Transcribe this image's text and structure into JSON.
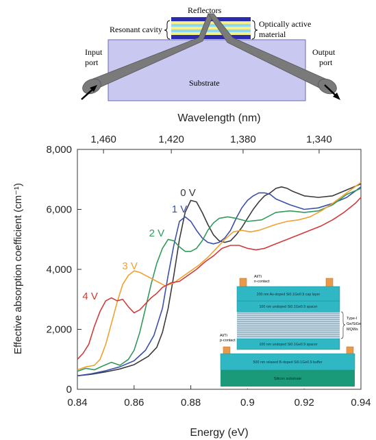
{
  "schematic": {
    "labels": {
      "reflectors": "Reflectors",
      "resonant_cavity": "Resonant cavity",
      "optically_active_line1": "Optically active",
      "optically_active_line2": "material",
      "input_line1": "Input",
      "input_line2": "port",
      "output_line1": "Output",
      "output_line2": "port",
      "substrate": "Substrate"
    },
    "colors": {
      "substrate": "#c8c8f0",
      "reflector": "#2b2bb0",
      "cavity_yellow": "#f5f08a",
      "cavity_cyan": "#8fd8f0",
      "waveguide": "#7a7a7a"
    }
  },
  "inset": {
    "labels": {
      "top_contact_line1": "Al/Ti",
      "top_contact_line2": "n-contact",
      "side_contact_line1": "Al/Ti",
      "side_contact_line2": "p-contact",
      "layer_cap": "200 nm As-doped Si0.1Ge0.9 cap layer",
      "layer_spacer_top": "100 nm undoped Si0.1Ge0.9 spacer",
      "layer_spacer_bottom": "100 nm undoped Si0.1Ge0.9 spacer",
      "layer_buffer": "500 nm relaxed B-doped Si0.1Ge0.9 buffer",
      "layer_substrate": "Silicon substrate",
      "qw_line1": "Type-I",
      "qw_line2": "Ge/SiGe",
      "qw_line3": "MQWs"
    },
    "colors": {
      "layer": "#2fb8c4",
      "substrate": "#1a9a78",
      "contact": "#e89a4a",
      "qw_light": "#c8dce8",
      "qw_dark": "#7e9aaa"
    }
  },
  "chart_data": {
    "type": "line",
    "xlabel": "Energy (eV)",
    "ylabel": "Effective absorption coefficient (cm⁻¹)",
    "top_xlabel": "Wavelength (nm)",
    "xlim": [
      0.84,
      0.94
    ],
    "ylim": [
      0,
      8000
    ],
    "x_ticks": [
      0.84,
      0.86,
      0.88,
      0.9,
      0.92,
      0.94
    ],
    "x_tick_labels": [
      "0.84",
      "0.86",
      "0.88",
      "0.9",
      "0.92",
      "0.94"
    ],
    "y_ticks": [
      0,
      2000,
      4000,
      6000,
      8000
    ],
    "y_tick_labels": [
      "0",
      "2,000",
      "4,000",
      "6,000",
      "8,000"
    ],
    "top_ticks_nm": [
      1460,
      1420,
      1380,
      1340
    ],
    "top_tick_labels": [
      "1,460",
      "1,420",
      "1,380",
      "1,340"
    ],
    "grid": false,
    "series": [
      {
        "name": "0 V",
        "color": "#3a3a3a",
        "label_at": [
          0.879,
          6450
        ],
        "points": [
          [
            0.84,
            450
          ],
          [
            0.845,
            500
          ],
          [
            0.85,
            580
          ],
          [
            0.855,
            680
          ],
          [
            0.86,
            820
          ],
          [
            0.865,
            1100
          ],
          [
            0.868,
            1400
          ],
          [
            0.87,
            1900
          ],
          [
            0.872,
            2700
          ],
          [
            0.874,
            3800
          ],
          [
            0.876,
            5000
          ],
          [
            0.878,
            5900
          ],
          [
            0.88,
            6300
          ],
          [
            0.882,
            6250
          ],
          [
            0.884,
            5900
          ],
          [
            0.886,
            5500
          ],
          [
            0.888,
            5150
          ],
          [
            0.89,
            4950
          ],
          [
            0.892,
            4900
          ],
          [
            0.894,
            4950
          ],
          [
            0.896,
            5150
          ],
          [
            0.898,
            5400
          ],
          [
            0.9,
            5700
          ],
          [
            0.902,
            6000
          ],
          [
            0.904,
            6250
          ],
          [
            0.906,
            6450
          ],
          [
            0.908,
            6550
          ],
          [
            0.91,
            6700
          ],
          [
            0.912,
            6750
          ],
          [
            0.914,
            6700
          ],
          [
            0.916,
            6600
          ],
          [
            0.92,
            6450
          ],
          [
            0.925,
            6400
          ],
          [
            0.93,
            6450
          ],
          [
            0.935,
            6650
          ],
          [
            0.94,
            6850
          ]
        ]
      },
      {
        "name": "1 V",
        "color": "#3a4fa8",
        "label_at": [
          0.876,
          5900
        ],
        "points": [
          [
            0.84,
            450
          ],
          [
            0.845,
            520
          ],
          [
            0.85,
            620
          ],
          [
            0.855,
            750
          ],
          [
            0.86,
            950
          ],
          [
            0.864,
            1300
          ],
          [
            0.867,
            1800
          ],
          [
            0.87,
            2700
          ],
          [
            0.872,
            3800
          ],
          [
            0.874,
            4800
          ],
          [
            0.876,
            5600
          ],
          [
            0.878,
            5750
          ],
          [
            0.88,
            5600
          ],
          [
            0.882,
            5300
          ],
          [
            0.884,
            5050
          ],
          [
            0.886,
            4900
          ],
          [
            0.888,
            4850
          ],
          [
            0.89,
            4900
          ],
          [
            0.892,
            5050
          ],
          [
            0.894,
            5300
          ],
          [
            0.896,
            5700
          ],
          [
            0.898,
            6050
          ],
          [
            0.9,
            6300
          ],
          [
            0.902,
            6450
          ],
          [
            0.904,
            6550
          ],
          [
            0.906,
            6550
          ],
          [
            0.908,
            6500
          ],
          [
            0.91,
            6350
          ],
          [
            0.915,
            6150
          ],
          [
            0.92,
            6000
          ],
          [
            0.925,
            6050
          ],
          [
            0.93,
            6200
          ],
          [
            0.935,
            6400
          ],
          [
            0.94,
            6750
          ]
        ]
      },
      {
        "name": "2 V",
        "color": "#2f9a5a",
        "label_at": [
          0.868,
          5100
        ],
        "points": [
          [
            0.84,
            600
          ],
          [
            0.843,
            700
          ],
          [
            0.846,
            650
          ],
          [
            0.849,
            780
          ],
          [
            0.852,
            900
          ],
          [
            0.855,
            800
          ],
          [
            0.858,
            1000
          ],
          [
            0.86,
            1300
          ],
          [
            0.862,
            1900
          ],
          [
            0.864,
            2700
          ],
          [
            0.866,
            3500
          ],
          [
            0.868,
            4200
          ],
          [
            0.87,
            4700
          ],
          [
            0.872,
            5000
          ],
          [
            0.874,
            4950
          ],
          [
            0.876,
            4750
          ],
          [
            0.878,
            4600
          ],
          [
            0.88,
            4600
          ],
          [
            0.882,
            4700
          ],
          [
            0.884,
            4950
          ],
          [
            0.886,
            5300
          ],
          [
            0.888,
            5550
          ],
          [
            0.89,
            5700
          ],
          [
            0.893,
            5750
          ],
          [
            0.896,
            5700
          ],
          [
            0.9,
            5600
          ],
          [
            0.905,
            5650
          ],
          [
            0.91,
            5900
          ],
          [
            0.915,
            5950
          ],
          [
            0.92,
            5900
          ],
          [
            0.925,
            5950
          ],
          [
            0.93,
            6150
          ],
          [
            0.935,
            6500
          ],
          [
            0.94,
            6700
          ]
        ]
      },
      {
        "name": "3 V",
        "color": "#f0a030",
        "label_at": [
          0.8585,
          4000
        ],
        "points": [
          [
            0.84,
            650
          ],
          [
            0.843,
            750
          ],
          [
            0.846,
            800
          ],
          [
            0.848,
            1000
          ],
          [
            0.85,
            1500
          ],
          [
            0.852,
            2200
          ],
          [
            0.854,
            2900
          ],
          [
            0.856,
            3500
          ],
          [
            0.858,
            3800
          ],
          [
            0.86,
            3950
          ],
          [
            0.862,
            3900
          ],
          [
            0.865,
            3750
          ],
          [
            0.868,
            3600
          ],
          [
            0.871,
            3450
          ],
          [
            0.874,
            3550
          ],
          [
            0.877,
            3750
          ],
          [
            0.88,
            3950
          ],
          [
            0.883,
            4150
          ],
          [
            0.886,
            4400
          ],
          [
            0.889,
            4700
          ],
          [
            0.892,
            5000
          ],
          [
            0.895,
            5250
          ],
          [
            0.898,
            5300
          ],
          [
            0.901,
            5250
          ],
          [
            0.904,
            5300
          ],
          [
            0.907,
            5400
          ],
          [
            0.91,
            5500
          ],
          [
            0.914,
            5600
          ],
          [
            0.918,
            5650
          ],
          [
            0.922,
            5750
          ],
          [
            0.926,
            5950
          ],
          [
            0.93,
            6200
          ],
          [
            0.935,
            6550
          ],
          [
            0.94,
            6900
          ]
        ]
      },
      {
        "name": "4 V",
        "color": "#d03a3a",
        "label_at": [
          0.8445,
          3000
        ],
        "points": [
          [
            0.84,
            1000
          ],
          [
            0.842,
            1200
          ],
          [
            0.844,
            1500
          ],
          [
            0.846,
            2100
          ],
          [
            0.848,
            2600
          ],
          [
            0.85,
            2950
          ],
          [
            0.852,
            3050
          ],
          [
            0.854,
            2950
          ],
          [
            0.856,
            3000
          ],
          [
            0.858,
            2750
          ],
          [
            0.86,
            2550
          ],
          [
            0.862,
            2650
          ],
          [
            0.864,
            2850
          ],
          [
            0.866,
            3050
          ],
          [
            0.868,
            3200
          ],
          [
            0.87,
            3400
          ],
          [
            0.873,
            3550
          ],
          [
            0.876,
            3600
          ],
          [
            0.879,
            3800
          ],
          [
            0.882,
            4000
          ],
          [
            0.885,
            4250
          ],
          [
            0.888,
            4450
          ],
          [
            0.891,
            4700
          ],
          [
            0.894,
            4800
          ],
          [
            0.897,
            4800
          ],
          [
            0.9,
            4700
          ],
          [
            0.903,
            4650
          ],
          [
            0.906,
            4700
          ],
          [
            0.91,
            4850
          ],
          [
            0.914,
            5000
          ],
          [
            0.918,
            5150
          ],
          [
            0.922,
            5300
          ],
          [
            0.926,
            5450
          ],
          [
            0.93,
            5650
          ],
          [
            0.934,
            5900
          ],
          [
            0.938,
            6200
          ],
          [
            0.94,
            6400
          ]
        ]
      }
    ]
  }
}
